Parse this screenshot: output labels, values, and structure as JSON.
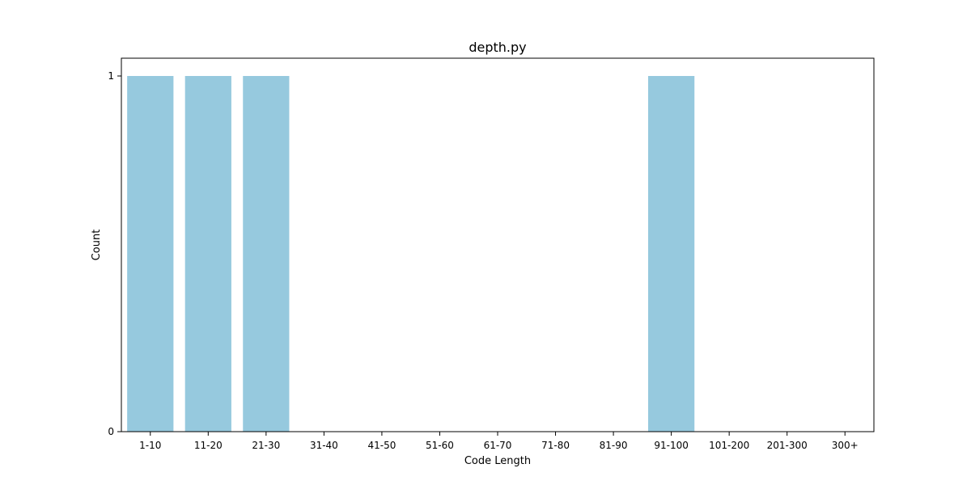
{
  "chart_data": {
    "type": "bar",
    "title": "depth.py",
    "xlabel": "Code Length",
    "ylabel": "Count",
    "categories": [
      "1-10",
      "11-20",
      "21-30",
      "31-40",
      "41-50",
      "51-60",
      "61-70",
      "71-80",
      "81-90",
      "91-100",
      "101-200",
      "201-300",
      "300+"
    ],
    "values": [
      1,
      1,
      1,
      0,
      0,
      0,
      0,
      0,
      0,
      1,
      0,
      0,
      0
    ],
    "ylim": [
      0,
      1.05
    ],
    "yticks": [
      "0",
      "1"
    ],
    "grid": false,
    "bar_color": "#96c9de"
  }
}
